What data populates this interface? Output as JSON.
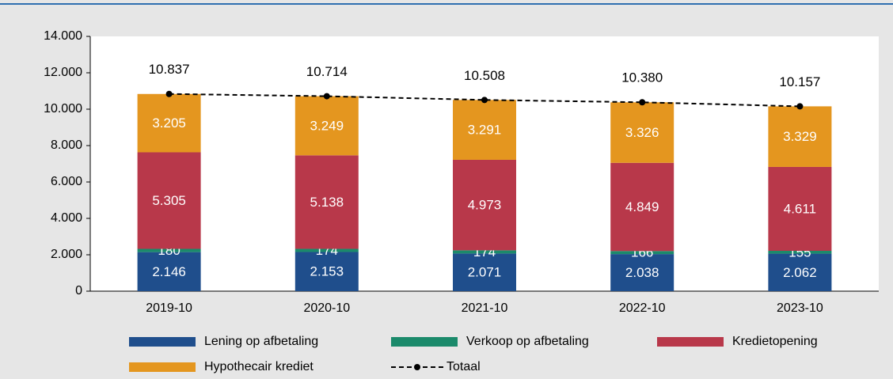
{
  "chart_data": {
    "type": "stacked_bar_line",
    "categories": [
      "2019-10",
      "2020-10",
      "2021-10",
      "2022-10",
      "2023-10"
    ],
    "series": [
      {
        "name": "Lening op afbetaling",
        "color": "#1f4e8c",
        "values": [
          2146,
          2153,
          2071,
          2038,
          2062
        ],
        "value_labels": [
          "2.146",
          "2.153",
          "2.071",
          "2.038",
          "2.062"
        ]
      },
      {
        "name": "Verkoop op afbetaling",
        "color": "#1b8a6b",
        "values": [
          180,
          174,
          174,
          166,
          155
        ],
        "value_labels": [
          "180",
          "174",
          "174",
          "166",
          "155"
        ]
      },
      {
        "name": "Kredietopening",
        "color": "#b8384a",
        "values": [
          5305,
          5138,
          4973,
          4849,
          4611
        ],
        "value_labels": [
          "5.305",
          "5.138",
          "4.973",
          "4.849",
          "4.611"
        ]
      },
      {
        "name": "Hypothecair krediet",
        "color": "#e4961f",
        "values": [
          3205,
          3249,
          3291,
          3326,
          3329
        ],
        "value_labels": [
          "3.205",
          "3.249",
          "3.291",
          "3.326",
          "3.329"
        ]
      },
      {
        "name": "Totaal",
        "type": "line",
        "color": "#000000",
        "values": [
          10837,
          10714,
          10508,
          10380,
          10157
        ],
        "value_labels": [
          "10.837",
          "10.714",
          "10.508",
          "10.380",
          "10.157"
        ]
      }
    ],
    "ylim": [
      0,
      14000
    ],
    "yticks": [
      0,
      {
        "value": 2000,
        "label": "2.000"
      },
      {
        "value": 4000,
        "label": "4.000"
      },
      {
        "value": 6000,
        "label": "6.000"
      },
      {
        "value": 8000,
        "label": "8.000"
      },
      {
        "value": 10000,
        "label": "10.000"
      },
      {
        "value": 12000,
        "label": "12.000"
      },
      {
        "value": 14000,
        "label": "14.000"
      }
    ]
  }
}
